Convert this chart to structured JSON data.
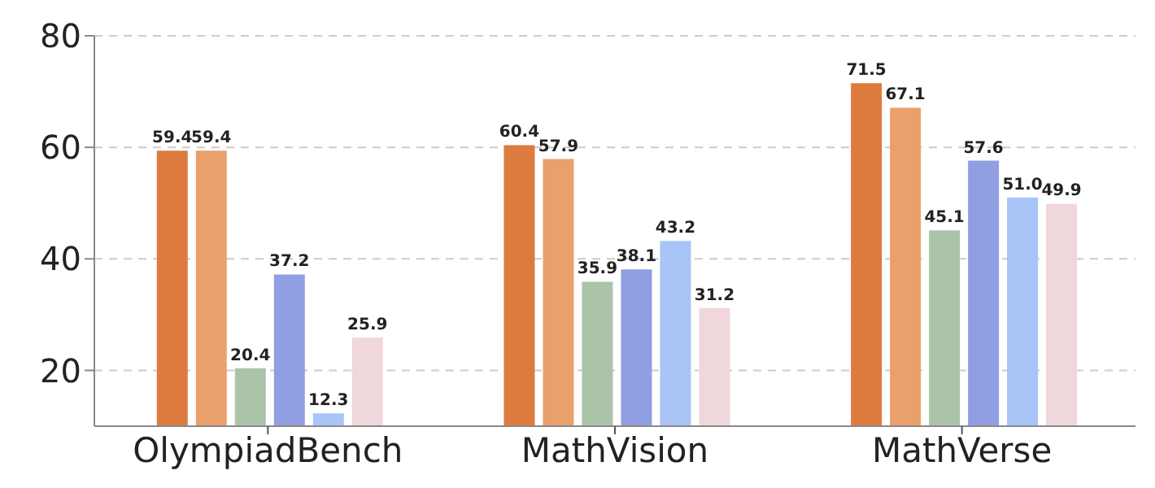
{
  "chart_data": {
    "type": "bar",
    "categories": [
      "OlympiadBench",
      "MathVision",
      "MathVerse"
    ],
    "series": [
      {
        "color": "#dd7b3e",
        "values": [
          59.4,
          60.4,
          71.5
        ],
        "value_labels": [
          "59.4",
          "60.4",
          "71.5"
        ]
      },
      {
        "color": "#e9a06b",
        "values": [
          59.4,
          57.9,
          67.1
        ],
        "value_labels": [
          "59.4",
          "57.9",
          "67.1"
        ]
      },
      {
        "color": "#abc4a9",
        "values": [
          20.4,
          35.9,
          45.1
        ],
        "value_labels": [
          "20.4",
          "35.9",
          "45.1"
        ]
      },
      {
        "color": "#909fe2",
        "values": [
          37.2,
          38.1,
          57.6
        ],
        "value_labels": [
          "37.2",
          "38.1",
          "57.6"
        ]
      },
      {
        "color": "#a9c4f6",
        "values": [
          12.3,
          43.2,
          51.0
        ],
        "value_labels": [
          "12.3",
          "43.2",
          "51.0"
        ]
      },
      {
        "color": "#f0d7dc",
        "values": [
          25.9,
          31.2,
          49.9
        ],
        "value_labels": [
          "25.9",
          "31.2",
          "49.9"
        ]
      }
    ],
    "ylim": [
      10,
      80
    ],
    "yticks": [
      20,
      40,
      60,
      80
    ],
    "grid": "y",
    "legend": false
  }
}
